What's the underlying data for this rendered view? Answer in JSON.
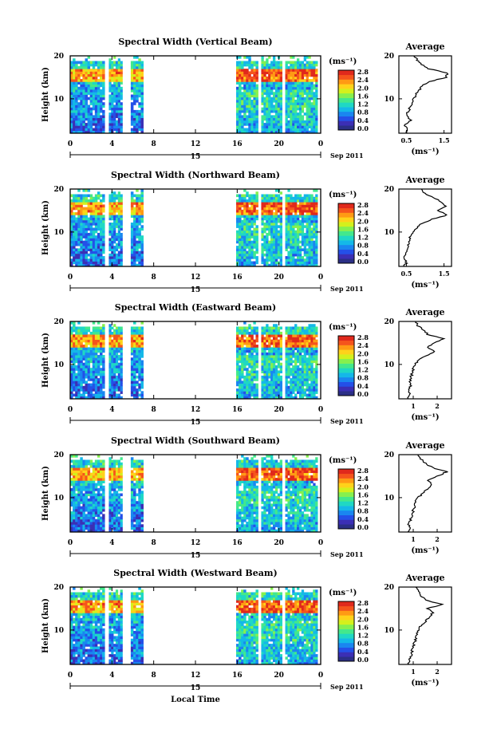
{
  "figure": {
    "xlabel": "Local Time",
    "ylabel": "Height (km)",
    "x_ticks": [
      "0",
      "4",
      "8",
      "12",
      "16",
      "20",
      "0"
    ],
    "date_day": "15",
    "date_label": "Sep 2011",
    "colorbar_unit": "(ms⁻¹)",
    "colorbar_ticks": [
      "0.0",
      "0.4",
      "0.8",
      "1.2",
      "1.6",
      "2.0",
      "2.4",
      "2.8"
    ],
    "colorbar_colors": [
      "#2b2f86",
      "#3b2fb5",
      "#2450e8",
      "#1a86f0",
      "#14b8e8",
      "#1fd8c4",
      "#43e88c",
      "#86f04e",
      "#d4f01c",
      "#ffd21a",
      "#ff9a14",
      "#f5541c",
      "#e0291c"
    ],
    "avg_title": "Average",
    "avg_unit": "(ms⁻¹)"
  },
  "chart_data": [
    {
      "type": "heatmap",
      "title": "Spectral Width (Vertical Beam)",
      "xlabel": "Local Time",
      "ylabel": "Height (km)",
      "xlim": [
        0,
        24
      ],
      "ylim": [
        2,
        20
      ],
      "y_ticks": [
        "20",
        "10"
      ],
      "data_intervals_hours": [
        [
          0,
          3.3
        ],
        [
          3.7,
          5.0
        ],
        [
          5.8,
          7.0
        ],
        [
          15.9,
          18.0
        ],
        [
          18.3,
          20.3
        ],
        [
          20.6,
          23.7
        ]
      ],
      "colorbar": {
        "label": "(ms⁻¹)",
        "range": [
          0.0,
          2.8
        ]
      },
      "average_profile": {
        "title": "Average",
        "xlabel": "(ms⁻¹)",
        "x_ticks": [
          "0.5",
          "1.5"
        ],
        "xlim": [
          0.3,
          1.7
        ],
        "y_ticks": [
          "20",
          "10"
        ],
        "height_km": [
          2,
          3,
          4,
          5,
          6,
          7,
          8,
          9,
          10,
          11,
          12,
          13,
          14,
          15,
          16,
          17,
          18,
          19,
          20
        ],
        "values": [
          0.5,
          0.55,
          0.45,
          0.6,
          0.5,
          0.55,
          0.6,
          0.65,
          0.7,
          0.75,
          0.85,
          0.9,
          1.1,
          1.55,
          1.6,
          1.1,
          0.9,
          0.8,
          0.7
        ]
      }
    },
    {
      "type": "heatmap",
      "title": "Spectral Width (Northward Beam)",
      "xlabel": "Local Time",
      "ylabel": "Height (km)",
      "xlim": [
        0,
        24
      ],
      "ylim": [
        2,
        20
      ],
      "y_ticks": [
        "20",
        "10"
      ],
      "data_intervals_hours": [
        [
          0,
          3.3
        ],
        [
          3.7,
          5.0
        ],
        [
          5.8,
          7.0
        ],
        [
          15.9,
          18.0
        ],
        [
          18.3,
          20.3
        ],
        [
          20.6,
          23.7
        ]
      ],
      "colorbar": {
        "label": "(ms⁻¹)",
        "range": [
          0.0,
          2.8
        ]
      },
      "average_profile": {
        "title": "Average",
        "xlabel": "(ms⁻¹)",
        "x_ticks": [
          "0.5",
          "1.5"
        ],
        "xlim": [
          0.3,
          1.7
        ],
        "y_ticks": [
          "20",
          "10"
        ],
        "height_km": [
          2,
          3,
          4,
          5,
          6,
          7,
          8,
          9,
          10,
          11,
          12,
          13,
          14,
          15,
          16,
          17,
          18,
          19,
          20
        ],
        "values": [
          0.45,
          0.5,
          0.45,
          0.5,
          0.5,
          0.55,
          0.6,
          0.6,
          0.7,
          0.8,
          0.9,
          1.2,
          1.6,
          1.3,
          1.55,
          1.45,
          1.2,
          1.0,
          0.9
        ]
      }
    },
    {
      "type": "heatmap",
      "title": "Spectral Width (Eastward Beam)",
      "xlabel": "Local Time",
      "ylabel": "Height (km)",
      "xlim": [
        0,
        24
      ],
      "ylim": [
        2,
        20
      ],
      "y_ticks": [
        "20",
        "10"
      ],
      "data_intervals_hours": [
        [
          0,
          3.3
        ],
        [
          3.7,
          5.0
        ],
        [
          5.8,
          7.0
        ],
        [
          15.9,
          18.0
        ],
        [
          18.3,
          20.3
        ],
        [
          20.6,
          23.7
        ]
      ],
      "colorbar": {
        "label": "(ms⁻¹)",
        "range": [
          0.0,
          2.8
        ]
      },
      "average_profile": {
        "title": "Average",
        "xlabel": "(ms⁻¹)",
        "x_ticks": [
          "1",
          "2"
        ],
        "xlim": [
          0.4,
          2.6
        ],
        "y_ticks": [
          "20",
          "10"
        ],
        "height_km": [
          2,
          3,
          4,
          5,
          6,
          7,
          8,
          9,
          10,
          11,
          12,
          13,
          14,
          15,
          16,
          17,
          18,
          19,
          20
        ],
        "values": [
          0.8,
          0.85,
          0.8,
          0.9,
          0.85,
          0.9,
          0.95,
          1.0,
          1.1,
          1.2,
          1.5,
          1.9,
          1.6,
          1.9,
          2.3,
          1.6,
          1.4,
          1.2,
          1.1
        ]
      }
    },
    {
      "type": "heatmap",
      "title": "Spectral Width (Southward Beam)",
      "xlabel": "Local Time",
      "ylabel": "Height (km)",
      "xlim": [
        0,
        24
      ],
      "ylim": [
        2,
        20
      ],
      "y_ticks": [
        "20",
        "10"
      ],
      "data_intervals_hours": [
        [
          0,
          3.3
        ],
        [
          3.7,
          5.0
        ],
        [
          5.8,
          7.0
        ],
        [
          15.9,
          18.0
        ],
        [
          18.3,
          20.3
        ],
        [
          20.6,
          23.7
        ]
      ],
      "colorbar": {
        "label": "(ms⁻¹)",
        "range": [
          0.0,
          2.8
        ]
      },
      "average_profile": {
        "title": "Average",
        "xlabel": "(ms⁻¹)",
        "x_ticks": [
          "1",
          "2"
        ],
        "xlim": [
          0.4,
          2.6
        ],
        "y_ticks": [
          "20",
          "10"
        ],
        "height_km": [
          2,
          3,
          4,
          5,
          6,
          7,
          8,
          9,
          10,
          11,
          12,
          13,
          14,
          15,
          16,
          17,
          18,
          19,
          20
        ],
        "values": [
          0.8,
          0.9,
          0.8,
          0.9,
          0.95,
          1.0,
          1.1,
          1.1,
          1.2,
          1.4,
          1.6,
          1.8,
          1.6,
          2.0,
          2.4,
          1.8,
          1.5,
          1.3,
          1.2
        ]
      }
    },
    {
      "type": "heatmap",
      "title": "Spectral Width (Westward Beam)",
      "xlabel": "Local Time",
      "ylabel": "Height (km)",
      "xlim": [
        0,
        24
      ],
      "ylim": [
        2,
        20
      ],
      "y_ticks": [
        "20",
        "10"
      ],
      "data_intervals_hours": [
        [
          0,
          3.3
        ],
        [
          3.7,
          5.0
        ],
        [
          5.8,
          7.0
        ],
        [
          15.9,
          18.0
        ],
        [
          18.3,
          20.3
        ],
        [
          20.6,
          23.7
        ]
      ],
      "colorbar": {
        "label": "(ms⁻¹)",
        "range": [
          0.0,
          2.8
        ]
      },
      "average_profile": {
        "title": "Average",
        "xlabel": "(ms⁻¹)",
        "x_ticks": [
          "1",
          "2"
        ],
        "xlim": [
          0.4,
          2.6
        ],
        "y_ticks": [
          "20",
          "10"
        ],
        "height_km": [
          2,
          3,
          4,
          5,
          6,
          7,
          8,
          9,
          10,
          11,
          12,
          13,
          14,
          15,
          16,
          17,
          18,
          19,
          20
        ],
        "values": [
          0.8,
          0.85,
          0.9,
          0.95,
          1.0,
          1.05,
          1.1,
          1.15,
          1.2,
          1.3,
          1.5,
          1.7,
          1.8,
          1.6,
          2.2,
          1.5,
          1.3,
          1.2,
          1.1
        ]
      }
    }
  ]
}
